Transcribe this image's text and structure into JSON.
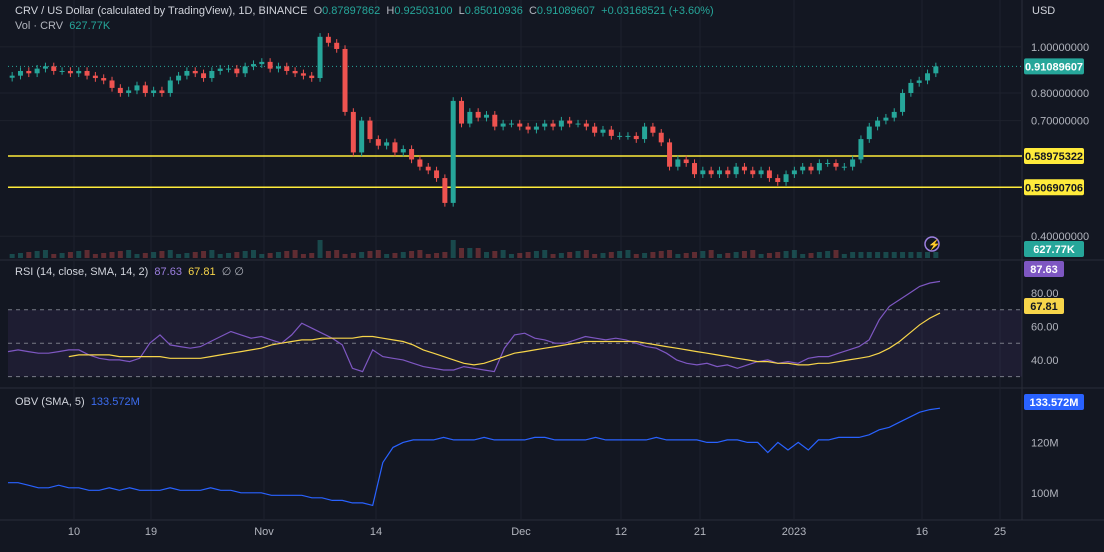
{
  "header": {
    "symbol": "CRV / US Dollar (calculated by TradingView), 1D, BINANCE",
    "open_label": "O",
    "open": "0.87897862",
    "high_label": "H",
    "high": "0.92503100",
    "low_label": "L",
    "low": "0.85010936",
    "close_label": "C",
    "close": "0.91089607",
    "change": "+0.03168521 (+3.60%)",
    "vol_label": "Vol · CRV",
    "vol": "627.77K"
  },
  "rsi_legend": {
    "label": "RSI (14, close, SMA, 14, 2)",
    "rsi": "87.63",
    "sma": "67.81",
    "extra": "∅ ∅"
  },
  "obv_legend": {
    "label": "OBV (SMA, 5)",
    "value": "133.572M"
  },
  "currency": "USD",
  "colors": {
    "bg": "#131722",
    "up": "#26a69a",
    "down": "#ef5350",
    "rsi": "#7e57c2",
    "rsi_sma": "#f7d54a",
    "obv": "#2962ff",
    "level": "#ffeb3b"
  },
  "badges": {
    "price": "0.91089607",
    "level_high": "0.58975322",
    "level_low": "0.50690706",
    "volume": "627.77K",
    "rsi": "87.63",
    "rsi_sma": "67.81",
    "obv": "133.572M"
  },
  "chart_data": {
    "type": "candlestick",
    "price_axis": {
      "scale": "log",
      "range": [
        0.36,
        1.15
      ],
      "ticks": [
        "1.00000000",
        "0.80000000",
        "0.70000000",
        "0.40000000"
      ]
    },
    "horizontal_levels": [
      0.58975322,
      0.50690706
    ],
    "x_axis_ticks": [
      "10",
      "19",
      "Nov",
      "14",
      "Dec",
      "12",
      "21",
      "2023",
      "16",
      "25"
    ],
    "candles_close": [
      0.87,
      0.89,
      0.88,
      0.9,
      0.91,
      0.89,
      0.89,
      0.88,
      0.89,
      0.87,
      0.86,
      0.85,
      0.82,
      0.8,
      0.81,
      0.83,
      0.8,
      0.81,
      0.8,
      0.85,
      0.87,
      0.89,
      0.88,
      0.86,
      0.89,
      0.9,
      0.9,
      0.88,
      0.91,
      0.92,
      0.93,
      0.9,
      0.91,
      0.89,
      0.88,
      0.87,
      0.86,
      1.05,
      1.02,
      0.99,
      0.73,
      0.6,
      0.7,
      0.64,
      0.62,
      0.63,
      0.6,
      0.61,
      0.58,
      0.56,
      0.55,
      0.53,
      0.47,
      0.77,
      0.69,
      0.73,
      0.71,
      0.72,
      0.68,
      0.69,
      0.69,
      0.68,
      0.67,
      0.68,
      0.69,
      0.68,
      0.7,
      0.69,
      0.69,
      0.68,
      0.66,
      0.67,
      0.65,
      0.65,
      0.65,
      0.64,
      0.68,
      0.66,
      0.63,
      0.56,
      0.58,
      0.57,
      0.54,
      0.55,
      0.54,
      0.55,
      0.54,
      0.56,
      0.55,
      0.54,
      0.55,
      0.53,
      0.52,
      0.54,
      0.55,
      0.56,
      0.55,
      0.57,
      0.57,
      0.56,
      0.56,
      0.58,
      0.64,
      0.68,
      0.7,
      0.71,
      0.73,
      0.8,
      0.84,
      0.85,
      0.88,
      0.91
    ],
    "rsi": {
      "range": [
        25,
        95
      ],
      "ticks": [
        "80.00",
        "60.00",
        "40.00"
      ],
      "bands": [
        30,
        50,
        70
      ],
      "values": [
        45,
        46,
        45,
        44,
        44,
        45,
        46,
        46,
        43,
        41,
        40,
        40,
        39,
        41,
        50,
        55,
        49,
        48,
        47,
        48,
        51,
        54,
        57,
        55,
        53,
        54,
        52,
        50,
        55,
        62,
        59,
        56,
        53,
        49,
        35,
        33,
        46,
        42,
        41,
        40,
        38,
        36,
        35,
        34,
        34,
        36,
        35,
        34,
        33,
        47,
        55,
        56,
        53,
        52,
        50,
        50,
        52,
        54,
        53,
        52,
        53,
        52,
        50,
        48,
        47,
        44,
        40,
        38,
        37,
        38,
        36,
        37,
        35,
        37,
        39,
        40,
        38,
        39,
        38,
        41,
        42,
        42,
        44,
        46,
        48,
        52,
        64,
        72,
        76,
        80,
        84,
        86,
        87
      ],
      "sma": [
        42,
        43,
        43,
        43,
        43,
        42,
        42,
        42,
        42,
        42,
        41,
        41,
        41,
        41,
        42,
        43,
        44,
        45,
        46,
        47,
        49,
        50,
        51,
        52,
        52,
        53,
        53,
        53,
        53,
        54,
        54,
        53,
        52,
        51,
        49,
        46,
        44,
        42,
        40,
        38,
        37,
        38,
        40,
        42,
        44,
        45,
        46,
        47,
        48,
        49,
        50,
        51,
        51,
        51,
        51,
        51,
        51,
        50,
        49,
        48,
        47,
        46,
        45,
        44,
        43,
        42,
        41,
        40,
        39,
        39,
        38,
        38,
        37,
        37,
        38,
        38,
        39,
        40,
        41,
        42,
        44,
        47,
        51,
        56,
        61,
        65,
        68
      ]
    },
    "obv": {
      "range_millions": [
        90,
        140
      ],
      "ticks": [
        "120M",
        "100M"
      ],
      "values_millions": [
        104,
        104,
        103,
        102,
        102,
        103,
        102,
        102,
        101,
        101,
        102,
        101,
        102,
        101,
        101,
        101,
        102,
        101,
        101,
        101,
        102,
        101,
        101,
        100,
        100,
        100,
        99,
        99,
        99,
        99,
        98,
        98,
        97,
        97,
        96,
        96,
        95,
        112,
        118,
        120,
        121,
        121,
        121,
        122,
        121,
        121,
        121,
        122,
        121,
        121,
        121,
        121,
        122,
        122,
        121,
        121,
        121,
        121,
        122,
        121,
        121,
        121,
        121,
        121,
        122,
        121,
        121,
        121,
        121,
        120,
        120,
        121,
        121,
        120,
        120,
        116,
        120,
        117,
        120,
        117,
        121,
        121,
        122,
        122,
        122,
        123,
        125,
        126,
        128,
        130,
        132,
        133,
        133.572
      ]
    }
  }
}
